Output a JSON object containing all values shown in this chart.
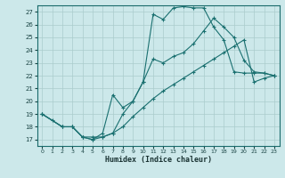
{
  "xlabel": "Humidex (Indice chaleur)",
  "bg_color": "#cce8ea",
  "grid_color": "#aacccc",
  "line_color": "#1a7070",
  "xlim": [
    -0.5,
    23.5
  ],
  "ylim": [
    16.5,
    27.5
  ],
  "xticks": [
    0,
    1,
    2,
    3,
    4,
    5,
    6,
    7,
    8,
    9,
    10,
    11,
    12,
    13,
    14,
    15,
    16,
    17,
    18,
    19,
    20,
    21,
    22,
    23
  ],
  "yticks": [
    17,
    18,
    19,
    20,
    21,
    22,
    23,
    24,
    25,
    26,
    27
  ],
  "line1_x": [
    0,
    1,
    2,
    3,
    4,
    5,
    6,
    7,
    8,
    9,
    10,
    11,
    12,
    13,
    14,
    15,
    16,
    17,
    18,
    19,
    20,
    21,
    22,
    23
  ],
  "line1_y": [
    19.0,
    18.5,
    18.0,
    18.0,
    17.2,
    17.2,
    17.2,
    17.5,
    19.0,
    20.0,
    21.5,
    26.8,
    26.4,
    27.3,
    27.4,
    27.3,
    27.3,
    25.8,
    24.8,
    22.3,
    22.2,
    22.2,
    22.2,
    22.0
  ],
  "line2_x": [
    0,
    2,
    3,
    4,
    5,
    6,
    7,
    8,
    9,
    10,
    11,
    12,
    13,
    14,
    15,
    16,
    17,
    18,
    19,
    20,
    21,
    22,
    23
  ],
  "line2_y": [
    19.0,
    18.0,
    18.0,
    17.2,
    17.0,
    17.5,
    20.5,
    19.5,
    20.0,
    21.5,
    23.3,
    23.0,
    23.5,
    23.8,
    24.5,
    25.5,
    26.5,
    25.8,
    25.0,
    23.2,
    22.3,
    22.2,
    22.0
  ],
  "line3_x": [
    0,
    2,
    3,
    4,
    5,
    6,
    7,
    8,
    9,
    10,
    11,
    12,
    13,
    14,
    15,
    16,
    17,
    18,
    19,
    20,
    21,
    22,
    23
  ],
  "line3_y": [
    19.0,
    18.0,
    18.0,
    17.2,
    17.0,
    17.2,
    17.5,
    18.0,
    18.8,
    19.5,
    20.2,
    20.8,
    21.3,
    21.8,
    22.3,
    22.8,
    23.3,
    23.8,
    24.3,
    24.8,
    21.5,
    21.8,
    22.0
  ]
}
